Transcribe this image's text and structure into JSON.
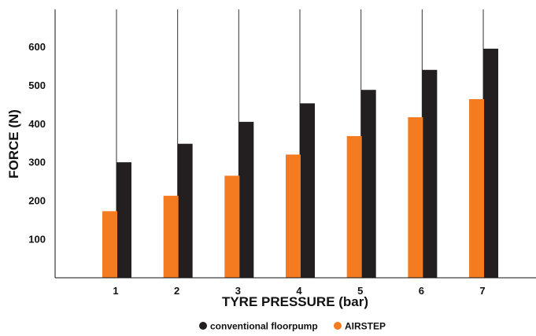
{
  "chart_data": {
    "type": "bar",
    "xlabel": "TYRE PRESSURE (bar)",
    "ylabel": "FORCE (N)",
    "categories": [
      "1",
      "2",
      "3",
      "4",
      "5",
      "6",
      "7"
    ],
    "y_ticks": [
      "100",
      "200",
      "300",
      "400",
      "500",
      "600"
    ],
    "ylim": [
      0,
      700
    ],
    "grid": "vertical lines at categories, horizontal axis line only",
    "legend_position": "bottom-center",
    "series": [
      {
        "name": "AIRSTEP",
        "color": "#f47b20",
        "values": [
          173,
          213,
          265,
          320,
          368,
          417,
          464
        ]
      },
      {
        "name": "conventional floorpump",
        "color": "#231f20",
        "values": [
          300,
          348,
          405,
          453,
          488,
          540,
          595
        ]
      }
    ],
    "legend": [
      {
        "label": "conventional floorpump",
        "color": "#231f20",
        "marker": "circle"
      },
      {
        "label": "AIRSTEP",
        "color": "#f47b20",
        "marker": "circle"
      }
    ]
  }
}
